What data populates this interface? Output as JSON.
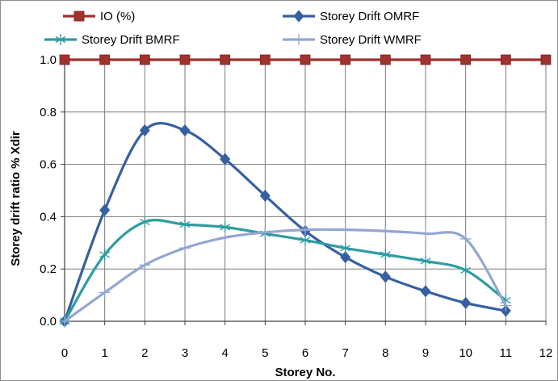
{
  "chart_data": {
    "type": "line",
    "title": "",
    "xlabel": "Storey No.",
    "ylabel": "Storey drift ratio % Xdir",
    "xlim": [
      0,
      12
    ],
    "ylim": [
      0,
      1.0
    ],
    "xticks": [
      0,
      1,
      2,
      3,
      4,
      5,
      6,
      7,
      8,
      9,
      10,
      11,
      12
    ],
    "yticks": [
      "0.0",
      "0.2",
      "0.4",
      "0.6",
      "0.8",
      "1.0"
    ],
    "grid": "on",
    "legend_position": "top",
    "series": [
      {
        "name": "IO (%)",
        "color": "#A0322F",
        "marker": "square",
        "smooth": false,
        "x": [
          0,
          1,
          2,
          3,
          4,
          5,
          6,
          7,
          8,
          9,
          10,
          11,
          12
        ],
        "y": [
          1,
          1,
          1,
          1,
          1,
          1,
          1,
          1,
          1,
          1,
          1,
          1,
          1
        ]
      },
      {
        "name": "Storey Drift OMRF",
        "color": "#3660A0",
        "marker": "diamond",
        "smooth": true,
        "x": [
          0,
          1,
          2,
          3,
          4,
          5,
          6,
          7,
          8,
          9,
          10,
          11
        ],
        "y": [
          0,
          0.425,
          0.73,
          0.73,
          0.62,
          0.48,
          0.345,
          0.245,
          0.17,
          0.115,
          0.07,
          0.04
        ]
      },
      {
        "name": "Storey Drift BMRF",
        "color": "#2E9CA0",
        "marker": "asterisk",
        "smooth": true,
        "x": [
          0,
          1,
          2,
          3,
          4,
          5,
          6,
          7,
          8,
          9,
          10,
          11
        ],
        "y": [
          0,
          0.255,
          0.38,
          0.37,
          0.36,
          0.335,
          0.31,
          0.28,
          0.255,
          0.23,
          0.195,
          0.08
        ]
      },
      {
        "name": "Storey Drift WMRF",
        "color": "#93A6D2",
        "marker": "plus",
        "smooth": true,
        "x": [
          0,
          1,
          2,
          3,
          4,
          5,
          6,
          7,
          8,
          9,
          10,
          11
        ],
        "y": [
          0,
          0.11,
          0.215,
          0.28,
          0.32,
          0.34,
          0.35,
          0.35,
          0.345,
          0.335,
          0.315,
          0.06
        ]
      }
    ]
  }
}
